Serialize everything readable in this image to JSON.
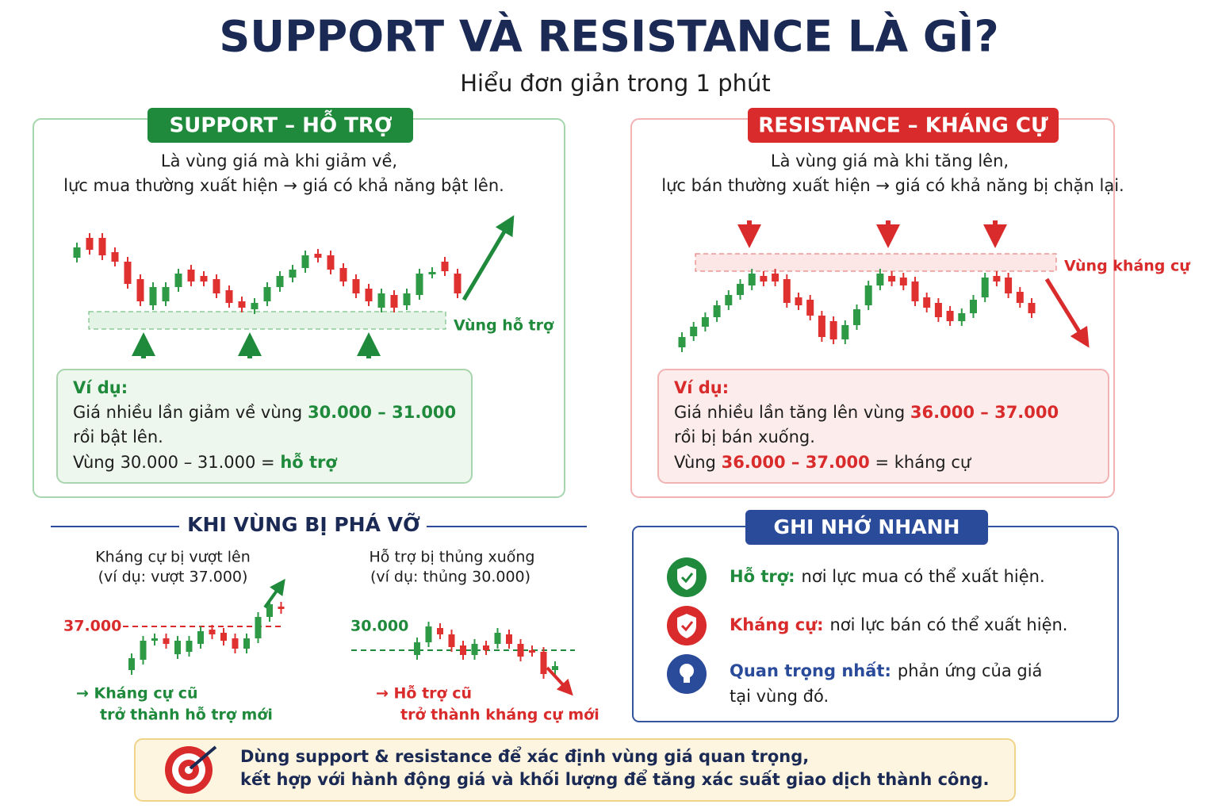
{
  "header": {
    "title": "SUPPORT VÀ RESISTANCE LÀ GÌ?",
    "subtitle": "Hiểu đơn giản trong 1 phút"
  },
  "support": {
    "badge": "SUPPORT – HỖ TRỢ",
    "description": [
      "Là vùng giá mà khi giảm về,",
      "lực mua thường xuất hiện → giá có khả năng bật lên."
    ],
    "zone_label": "Vùng hỗ trợ",
    "example": {
      "heading": "Ví dụ:",
      "line1": [
        "Giá nhiều lần giảm về vùng ",
        "30.000 – 31.000"
      ],
      "line2": "rồi bật lên.",
      "line3": [
        "Vùng 30.000 – 31.000 = ",
        "hỗ trợ"
      ]
    }
  },
  "resistance": {
    "badge": "RESISTANCE – KHÁNG CỰ",
    "description": [
      "Là vùng giá mà khi tăng lên,",
      "lực bán thường xuất hiện → giá có khả năng bị chặn lại."
    ],
    "zone_label": "Vùng kháng cự",
    "example": {
      "heading": "Ví dụ:",
      "line1": [
        "Giá nhiều lần tăng lên vùng ",
        "36.000 – 37.000"
      ],
      "line2": "rồi bị bán xuống.",
      "line3": [
        "Vùng ",
        "36.000 – 37.000",
        " = kháng cự"
      ]
    }
  },
  "breakout": {
    "title": "KHI VÙNG BỊ PHÁ VỠ",
    "left": {
      "caption": [
        "Kháng cự bị vượt lên",
        "(ví dụ: vượt 37.000)"
      ],
      "level": "37.000",
      "result": [
        "→ Kháng cự cũ",
        "trở thành hỗ trợ mới"
      ]
    },
    "right": {
      "caption": [
        "Hỗ trợ bị thủng xuống",
        "(ví dụ: thủng 30.000)"
      ],
      "level": "30.000",
      "result": [
        "→ Hỗ trợ cũ",
        "trở thành kháng cự mới"
      ]
    }
  },
  "remember": {
    "title": "GHI NHỚ NHANH",
    "items": [
      {
        "term": "Hỗ trợ:",
        "text": "nơi lực mua có thể xuất hiện."
      },
      {
        "term": "Kháng cự:",
        "text": "nơi lực bán có thể xuất hiện."
      },
      {
        "term": "Quan trọng nhất:",
        "text": [
          "phản ứng của giá",
          "tại vùng đó."
        ]
      }
    ]
  },
  "footer": [
    "Dùng support & resistance để xác định vùng giá quan trọng,",
    "kết hợp với hành động giá và khối lượng để tăng xác suất giao dịch thành công."
  ]
}
